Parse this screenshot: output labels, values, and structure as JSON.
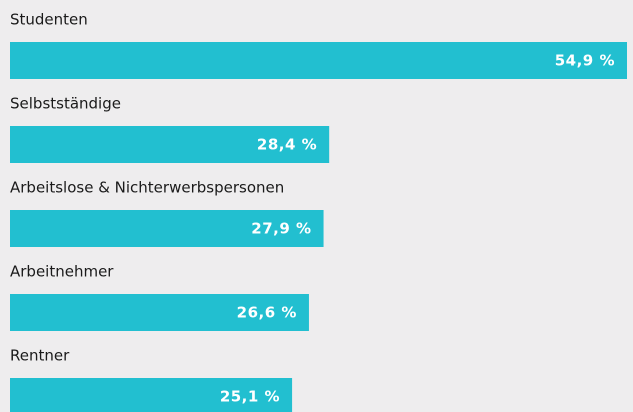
{
  "chart_data": {
    "type": "bar",
    "orientation": "horizontal",
    "categories": [
      "Studenten",
      "Selbstständige",
      "Arbeitslose & Nichterwerbspersonen",
      "Arbeitnehmer",
      "Rentner"
    ],
    "values": [
      54.9,
      28.4,
      27.9,
      26.6,
      25.1
    ],
    "value_labels": [
      "54,9 %",
      "28,4 %",
      "27,9 %",
      "26,6 %",
      "25,1 %"
    ],
    "color": "#22bfd0"
  }
}
